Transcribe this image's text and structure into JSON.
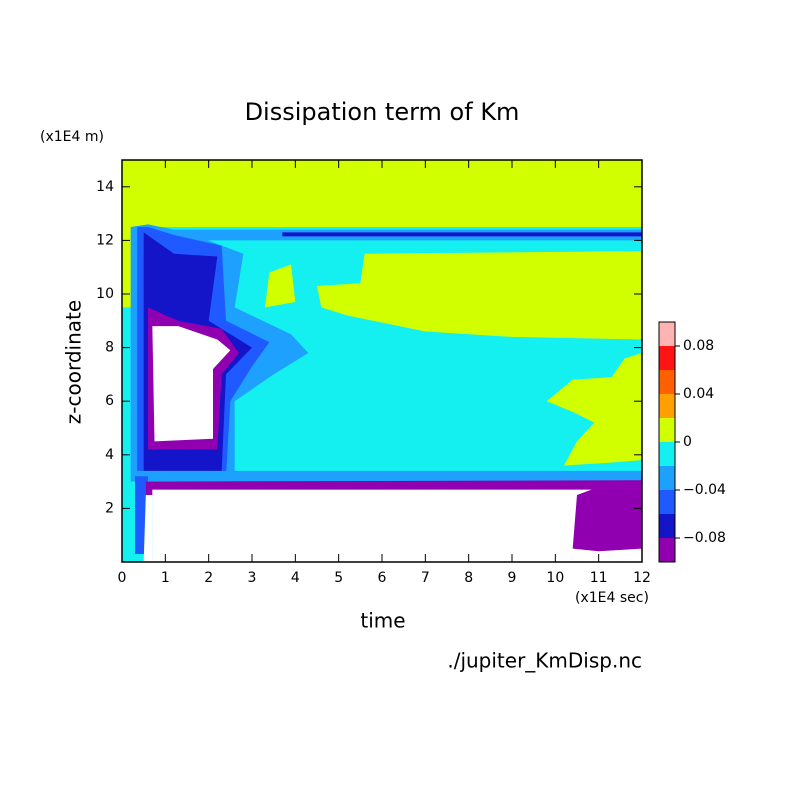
{
  "chart_data": {
    "type": "contour",
    "title": "Dissipation term of Km",
    "xlabel": "time",
    "ylabel": "z-coordinate",
    "xunit": "(x1E4 sec)",
    "yunit": "(x1E4 m)",
    "source": "./jupiter_KmDisp.nc",
    "xlim": [
      0,
      12
    ],
    "xticks": [
      0,
      1,
      2,
      3,
      4,
      5,
      6,
      7,
      8,
      9,
      10,
      11,
      12
    ],
    "ylim": [
      0,
      15
    ],
    "yticks": [
      2,
      4,
      6,
      8,
      10,
      12,
      14
    ],
    "colorbar": {
      "levels": [
        -0.1,
        -0.08,
        -0.06,
        -0.04,
        -0.02,
        0,
        0.02,
        0.04,
        0.06,
        0.08,
        0.1
      ],
      "colors": [
        "#9000b0",
        "#1414c8",
        "#1e5aff",
        "#1ea0ff",
        "#14f0f0",
        "#d2ff00",
        "#ffa000",
        "#ff6000",
        "#ff1414",
        "#ffb4b4"
      ],
      "ticks": [
        {
          "value": -0.08,
          "label": "−0.08"
        },
        {
          "value": -0.04,
          "label": "−0.04"
        },
        0,
        0.04,
        0.08
      ]
    }
  }
}
